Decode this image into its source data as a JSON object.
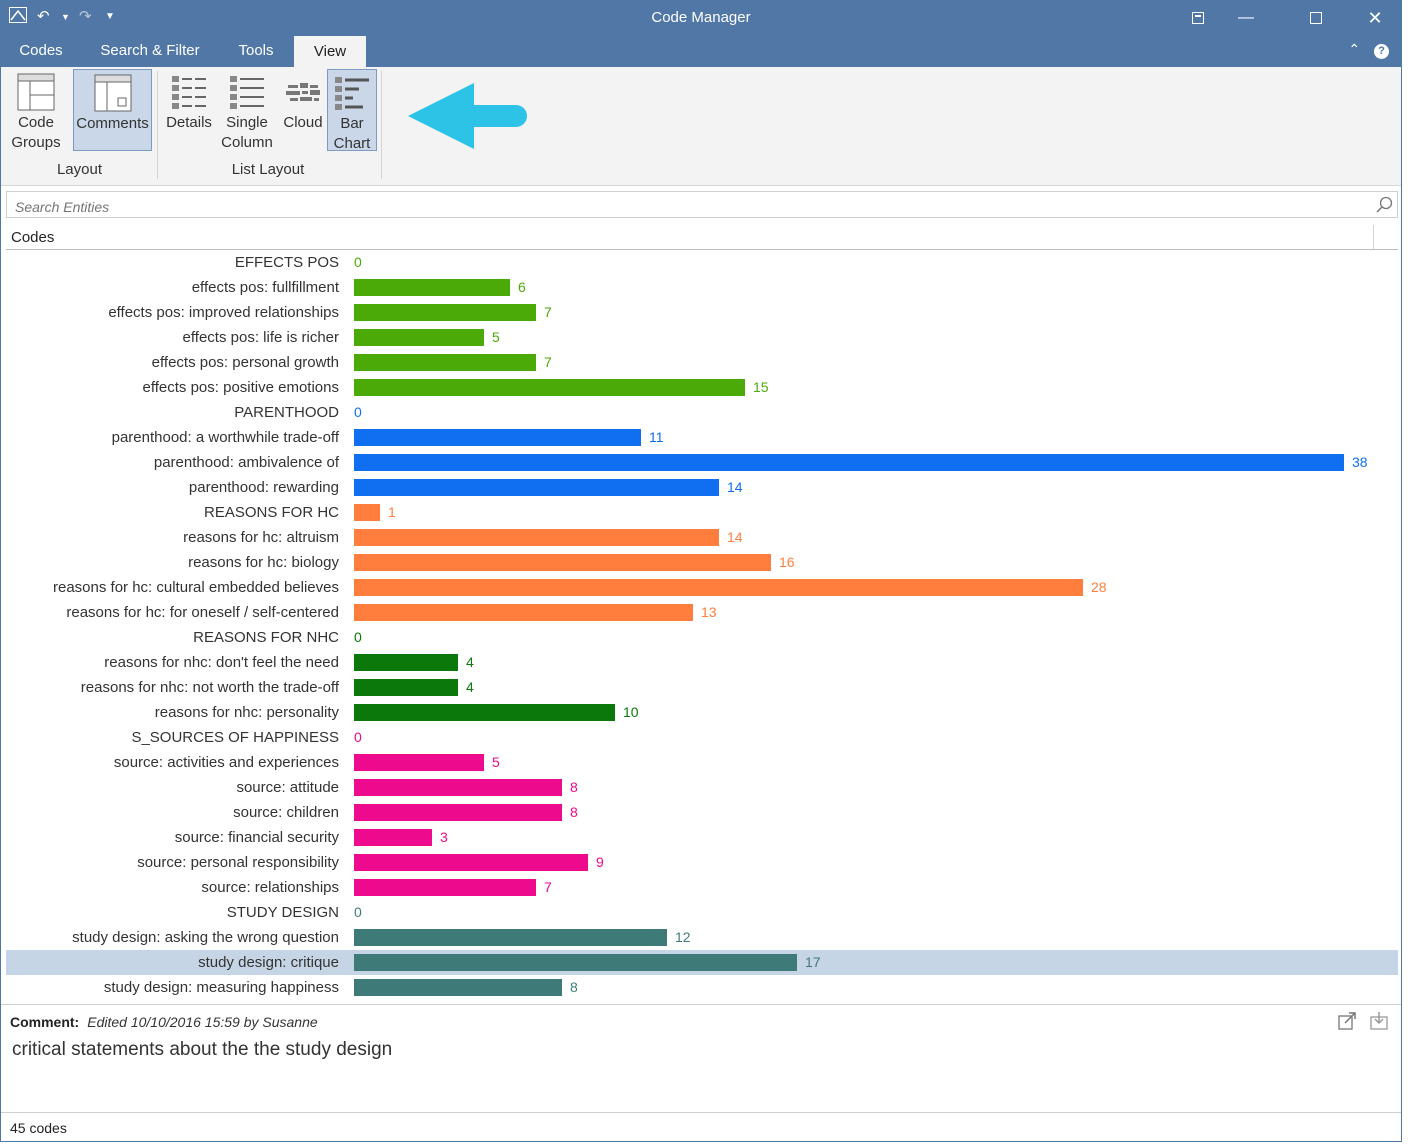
{
  "window": {
    "title": "Code Manager"
  },
  "tabs": [
    {
      "label": "Codes"
    },
    {
      "label": "Search & Filter"
    },
    {
      "label": "Tools"
    },
    {
      "label": "View"
    }
  ],
  "ribbon": {
    "layout_group": "Layout",
    "list_layout_group": "List Layout",
    "code_groups_line1": "Code",
    "code_groups_line2": "Groups",
    "comments": "Comments",
    "details": "Details",
    "single_col_line1": "Single",
    "single_col_line2": "Column",
    "cloud": "Cloud",
    "bar_chart_line1": "Bar",
    "bar_chart_line2": "Chart"
  },
  "search": {
    "placeholder": "Search Entities"
  },
  "list_header": "Codes",
  "colors": {
    "lime": "#4caa08",
    "blue": "#0f6ff0",
    "orange": "#ff7e3d",
    "green": "#0b780b",
    "pink": "#ee0a8c",
    "teal": "#3e7b78",
    "accent_arrow": "#2dc3e6"
  },
  "chart_data": {
    "type": "bar",
    "orientation": "horizontal",
    "xlim": [
      0,
      38
    ],
    "rows": [
      {
        "label": "EFFECTS POS",
        "value": 0,
        "color": "lime"
      },
      {
        "label": "effects pos: fullfillment",
        "value": 6,
        "color": "lime"
      },
      {
        "label": "effects pos: improved relationships",
        "value": 7,
        "color": "lime"
      },
      {
        "label": "effects pos: life is richer",
        "value": 5,
        "color": "lime"
      },
      {
        "label": "effects pos: personal growth",
        "value": 7,
        "color": "lime"
      },
      {
        "label": "effects pos: positive emotions",
        "value": 15,
        "color": "lime"
      },
      {
        "label": "PARENTHOOD",
        "value": 0,
        "color": "blue"
      },
      {
        "label": "parenthood: a worthwhile trade-off",
        "value": 11,
        "color": "blue"
      },
      {
        "label": "parenthood: ambivalence of",
        "value": 38,
        "color": "blue"
      },
      {
        "label": "parenthood: rewarding",
        "value": 14,
        "color": "blue"
      },
      {
        "label": "REASONS FOR HC",
        "value": 1,
        "color": "orange"
      },
      {
        "label": "reasons for hc: altruism",
        "value": 14,
        "color": "orange"
      },
      {
        "label": "reasons for hc: biology",
        "value": 16,
        "color": "orange"
      },
      {
        "label": "reasons for hc: cultural embedded believes",
        "value": 28,
        "color": "orange"
      },
      {
        "label": "reasons for hc: for oneself / self-centered",
        "value": 13,
        "color": "orange"
      },
      {
        "label": "REASONS FOR NHC",
        "value": 0,
        "color": "green"
      },
      {
        "label": "reasons for nhc: don't feel the need",
        "value": 4,
        "color": "green"
      },
      {
        "label": "reasons for nhc: not worth the trade-off",
        "value": 4,
        "color": "green"
      },
      {
        "label": "reasons for nhc: personality",
        "value": 10,
        "color": "green"
      },
      {
        "label": "S_SOURCES OF HAPPINESS",
        "value": 0,
        "color": "pink"
      },
      {
        "label": "source: activities and experiences",
        "value": 5,
        "color": "pink"
      },
      {
        "label": "source: attitude",
        "value": 8,
        "color": "pink"
      },
      {
        "label": "source: children",
        "value": 8,
        "color": "pink"
      },
      {
        "label": "source: financial security",
        "value": 3,
        "color": "pink"
      },
      {
        "label": "source: personal responsibility",
        "value": 9,
        "color": "pink"
      },
      {
        "label": "source: relationships",
        "value": 7,
        "color": "pink"
      },
      {
        "label": "STUDY DESIGN",
        "value": 0,
        "color": "teal"
      },
      {
        "label": "study design: asking the wrong question",
        "value": 12,
        "color": "teal"
      },
      {
        "label": "study design: critique",
        "value": 17,
        "color": "teal",
        "selected": true
      },
      {
        "label": "study design: measuring happiness",
        "value": 8,
        "color": "teal"
      }
    ]
  },
  "comment": {
    "label": "Comment:",
    "meta": "Edited 10/10/2016 15:59 by Susanne",
    "text": "critical statements about the the study design"
  },
  "status": {
    "text": "45 codes"
  }
}
